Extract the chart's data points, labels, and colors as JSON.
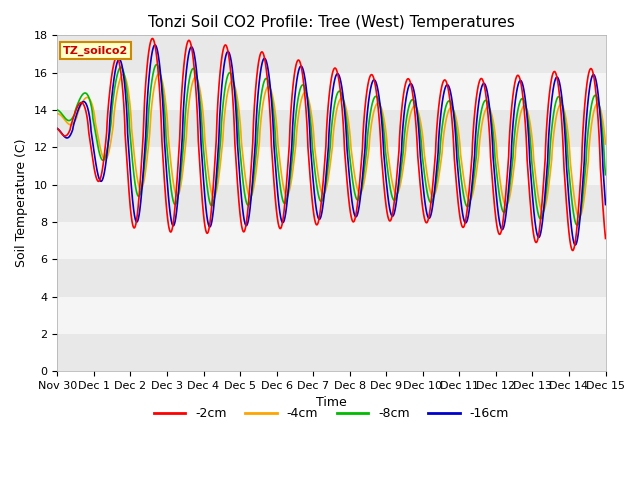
{
  "title": "Tonzi Soil CO2 Profile: Tree (West) Temperatures",
  "ylabel": "Soil Temperature (C)",
  "xlabel": "Time",
  "legend_label": "TZ_soilco2",
  "ylim": [
    0,
    18
  ],
  "yticks": [
    0,
    2,
    4,
    6,
    8,
    10,
    12,
    14,
    16,
    18
  ],
  "xtick_labels": [
    "Nov 30",
    "Dec 1",
    "Dec 2",
    "Dec 3",
    "Dec 4",
    "Dec 5",
    "Dec 6",
    "Dec 7",
    "Dec 8",
    "Dec 9",
    "Dec 10",
    "Dec 11",
    "Dec 12",
    "Dec 13",
    "Dec 14",
    "Dec 15"
  ],
  "line_colors": {
    "-2cm": "#ff0000",
    "-4cm": "#ffa500",
    "-8cm": "#00bb00",
    "-16cm": "#0000cc"
  },
  "legend_entries": [
    "-2cm",
    "-4cm",
    "-8cm",
    "-16cm"
  ],
  "background_color": "#ffffff",
  "band_colors": [
    "#e8e8e8",
    "#f5f5f5"
  ],
  "title_fontsize": 11,
  "axis_fontsize": 9,
  "tick_fontsize": 8
}
